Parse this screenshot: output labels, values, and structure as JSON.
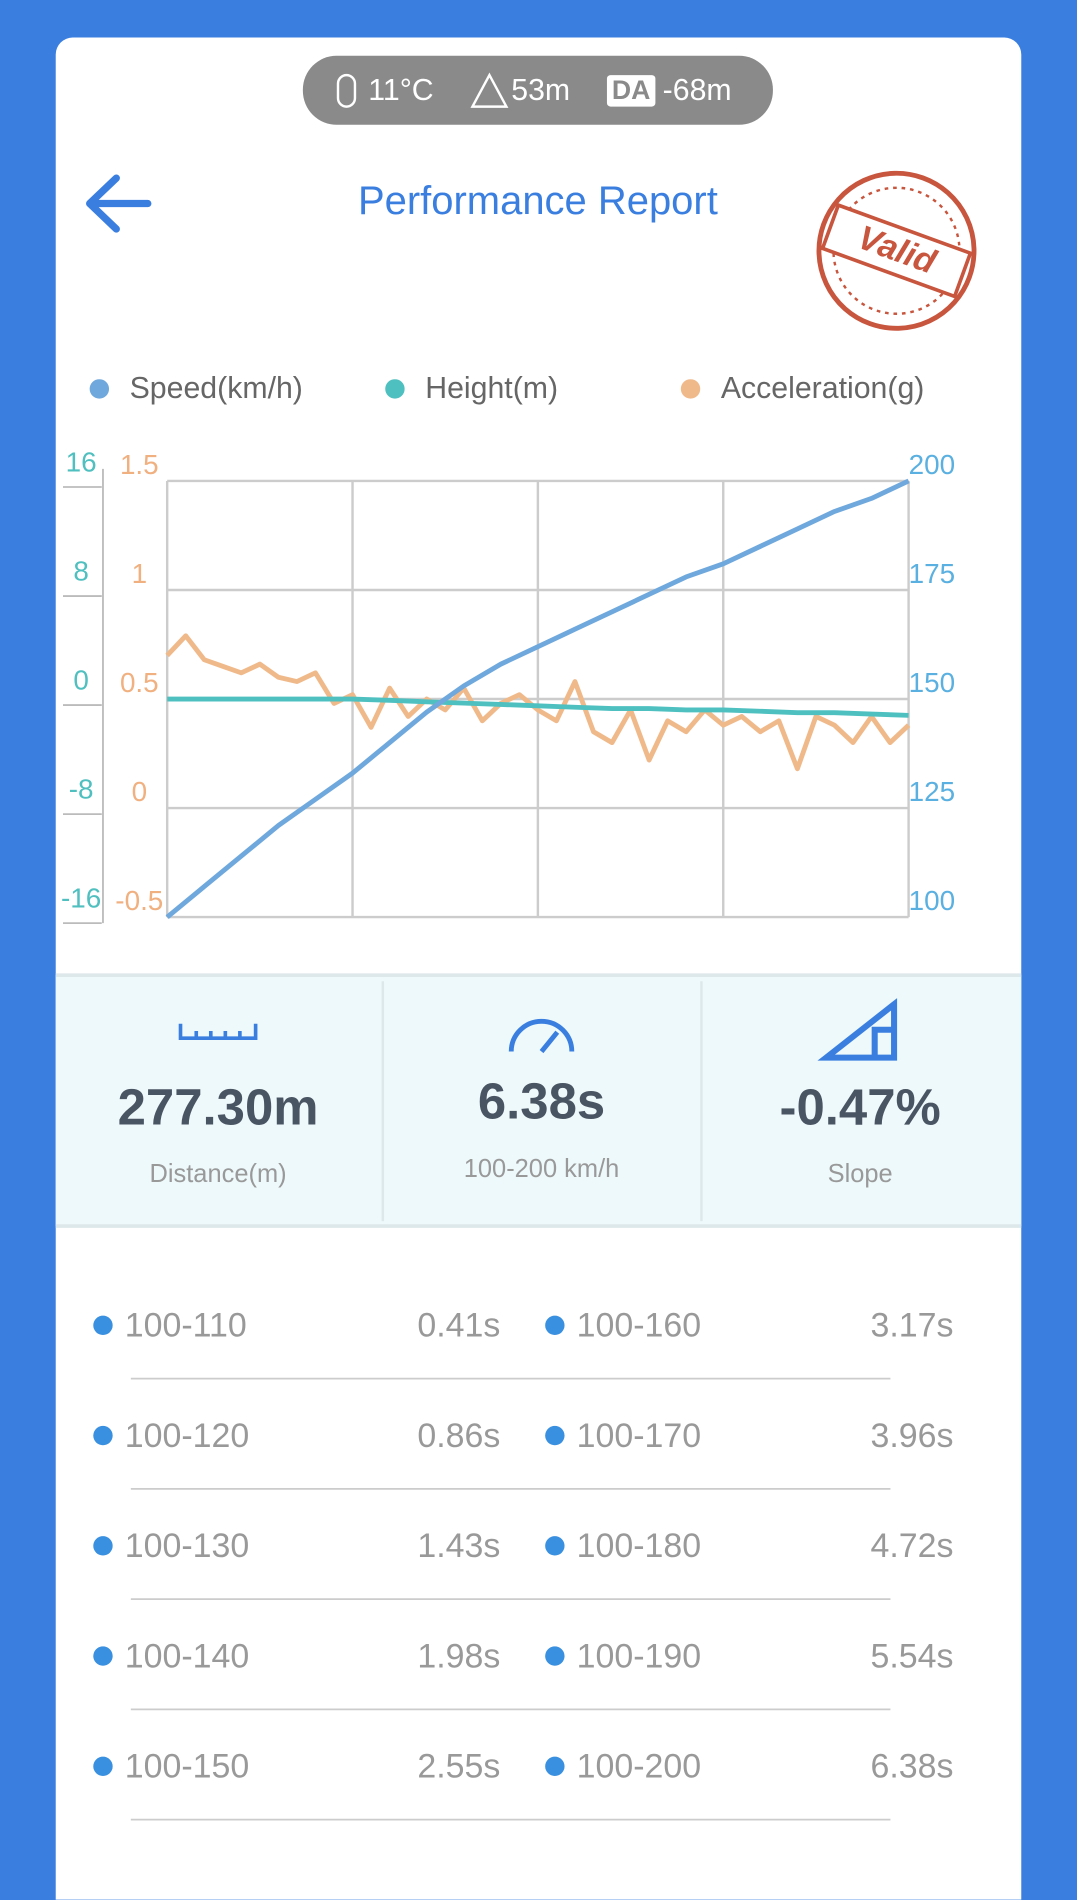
{
  "status_bar": {
    "temperature": "11°C",
    "altitude": "53m",
    "da_badge": "DA",
    "density_altitude": "-68m"
  },
  "header": {
    "title": "Performance Report",
    "stamp": "Valid"
  },
  "chart": {
    "type": "line",
    "series": [
      {
        "name": "Speed(km/h)",
        "color": "#6fa8dc",
        "axis": "y2",
        "values": [
          100,
          107,
          114,
          121,
          127,
          133,
          140,
          147,
          153,
          158,
          162,
          166,
          170,
          174,
          178,
          181,
          185,
          189,
          193,
          196,
          200
        ]
      },
      {
        "name": "Height(m)",
        "color": "#4fc0c0",
        "axis": "y",
        "values": [
          0,
          0,
          0,
          0,
          0,
          0,
          -0.1,
          -0.2,
          -0.3,
          -0.4,
          -0.5,
          -0.6,
          -0.7,
          -0.7,
          -0.8,
          -0.8,
          -0.9,
          -1.0,
          -1.0,
          -1.1,
          -1.2
        ]
      },
      {
        "name": "Acceleration(g)",
        "color": "#f0b98a",
        "axis": "y3",
        "values": [
          0.7,
          0.79,
          0.68,
          0.65,
          0.62,
          0.66,
          0.6,
          0.58,
          0.62,
          0.48,
          0.52,
          0.37,
          0.55,
          0.42,
          0.5,
          0.45,
          0.55,
          0.4,
          0.48,
          0.52,
          0.45,
          0.4,
          0.58,
          0.35,
          0.3,
          0.45,
          0.22,
          0.4,
          0.35,
          0.45,
          0.38,
          0.42,
          0.35,
          0.4,
          0.18,
          0.42,
          0.38,
          0.3,
          0.42,
          0.3,
          0.38
        ]
      }
    ],
    "ylim": [
      -16,
      16
    ],
    "yticks": [
      -16,
      -8,
      0,
      8,
      16
    ],
    "y3lim": [
      -0.5,
      1.5
    ],
    "y3ticks": [
      -0.5,
      0,
      0.5,
      1,
      1.5
    ],
    "y2lim": [
      100,
      200
    ],
    "y2ticks": [
      100,
      125,
      150,
      175,
      200
    ],
    "grid": true
  },
  "stats": [
    {
      "value": "277.30m",
      "label": "Distance(m)"
    },
    {
      "value": "6.38s",
      "label": "100-200 km/h"
    },
    {
      "value": "-0.47%",
      "label": "Slope"
    }
  ],
  "table": {
    "rows": [
      [
        "100-110",
        "0.41s",
        "100-160",
        "3.17s"
      ],
      [
        "100-120",
        "0.86s",
        "100-170",
        "3.96s"
      ],
      [
        "100-130",
        "1.43s",
        "100-180",
        "4.72s"
      ],
      [
        "100-140",
        "1.98s",
        "100-190",
        "5.54s"
      ],
      [
        "100-150",
        "2.55s",
        "100-200",
        "6.38s"
      ]
    ]
  }
}
